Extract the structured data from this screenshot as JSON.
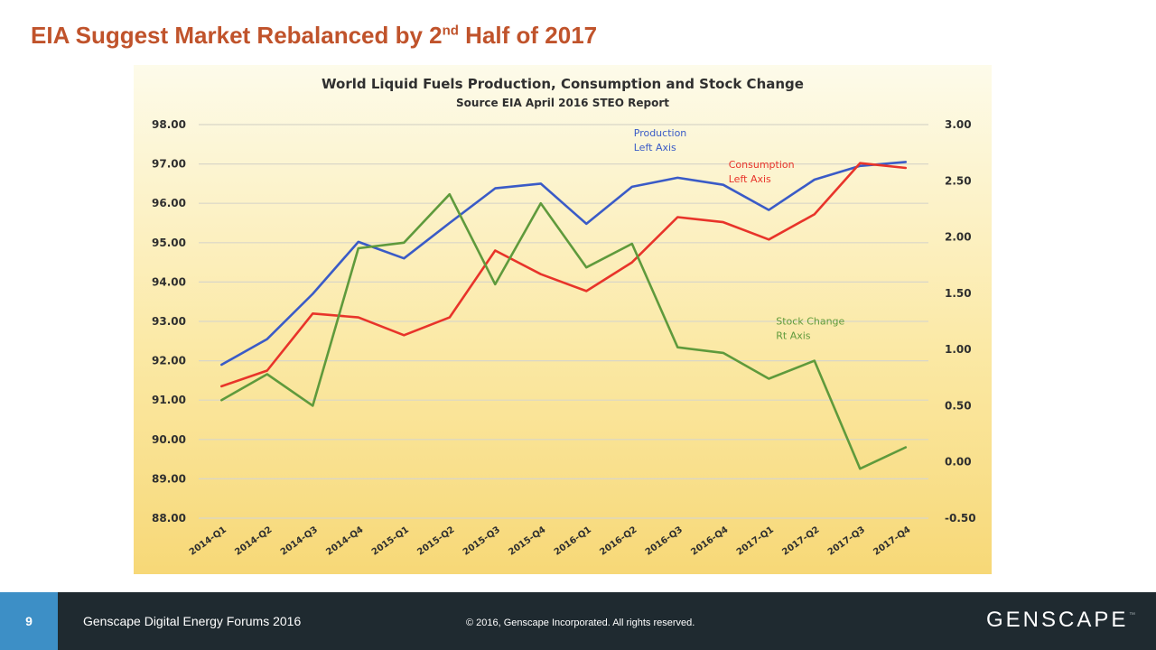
{
  "slide": {
    "title_main": "EIA Suggest Market Rebalanced by 2",
    "title_sup": "nd",
    "title_end": " Half of 2017"
  },
  "footer": {
    "page_number": "9",
    "left_text": "Genscape Digital Energy Forums 2016",
    "copyright": "© 2016, Genscape Incorporated. All rights reserved.",
    "logo_text": "GENSCAPE",
    "logo_mark": "™"
  },
  "colors": {
    "title": "#c0532b",
    "production": "#3a5bc7",
    "consumption": "#e8342a",
    "stock_change": "#5f9a3c",
    "footer_bg": "#1f2a30",
    "page_box": "#3d8fc6"
  },
  "chart_data": {
    "type": "line",
    "title": "World Liquid Fuels Production, Consumption and Stock Change",
    "subtitle": "Source EIA April 2016 STEO Report",
    "categories": [
      "2014-Q1",
      "2014-Q2",
      "2014-Q3",
      "2014-Q4",
      "2015-Q1",
      "2015-Q2",
      "2015-Q3",
      "2015-Q4",
      "2016-Q1",
      "2016-Q2",
      "2016-Q3",
      "2016-Q4",
      "2017-Q1",
      "2017-Q2",
      "2017-Q3",
      "2017-Q4"
    ],
    "left_axis": {
      "range": [
        88,
        98
      ],
      "ticks": [
        "98.00",
        "97.00",
        "96.00",
        "95.00",
        "94.00",
        "93.00",
        "92.00",
        "91.00",
        "90.00",
        "89.00",
        "88.00"
      ]
    },
    "right_axis": {
      "range": [
        -0.5,
        3.0
      ],
      "ticks": [
        "3.00",
        "2.50",
        "2.00",
        "1.50",
        "1.00",
        "0.50",
        "0.00",
        "-0.50"
      ]
    },
    "grid": true,
    "series": [
      {
        "name": "Production",
        "label_lines": [
          "Production",
          "Left Axis"
        ],
        "axis": "left",
        "color": "#3a5bc7",
        "values": [
          91.9,
          92.55,
          93.7,
          95.02,
          94.6,
          95.5,
          96.38,
          96.5,
          95.48,
          96.42,
          96.65,
          96.47,
          95.83,
          96.6,
          96.95,
          97.05
        ]
      },
      {
        "name": "Consumption",
        "label_lines": [
          "Consumption",
          "Left Axis"
        ],
        "axis": "left",
        "color": "#e8342a",
        "values": [
          91.35,
          91.75,
          93.2,
          93.1,
          92.65,
          93.1,
          94.8,
          94.2,
          93.77,
          94.5,
          95.65,
          95.52,
          95.08,
          95.72,
          97.02,
          96.9
        ]
      },
      {
        "name": "Stock Change",
        "label_lines": [
          "Stock Change",
          "Rt Axis"
        ],
        "axis": "right",
        "color": "#5f9a3c",
        "values": [
          0.55,
          0.78,
          0.5,
          1.9,
          1.95,
          2.38,
          1.58,
          2.3,
          1.73,
          1.94,
          1.02,
          0.97,
          0.74,
          0.9,
          -0.06,
          0.13
        ]
      }
    ]
  }
}
